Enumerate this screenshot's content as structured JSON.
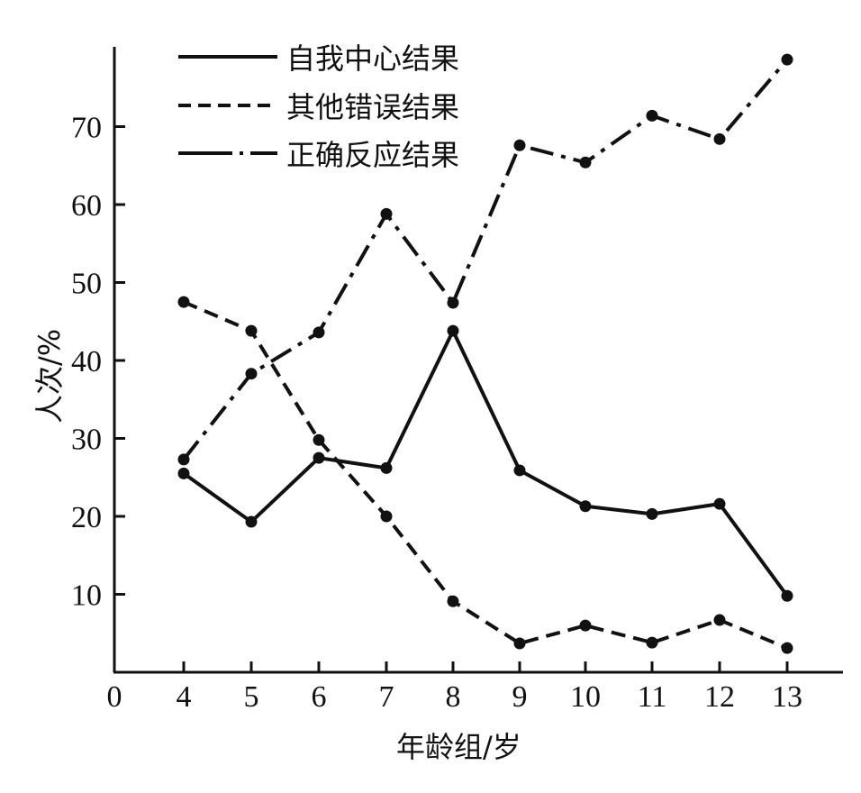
{
  "chart_data": {
    "type": "line",
    "title": "",
    "xlabel": "年龄组/岁",
    "ylabel": "人次/%",
    "x": [
      4,
      5,
      6,
      7,
      8,
      9,
      10,
      11,
      12,
      13
    ],
    "x_tick_labels": [
      "0",
      "4",
      "5",
      "6",
      "7",
      "8",
      "9",
      "10",
      "11",
      "12",
      "13"
    ],
    "y_tick_labels": [
      "10",
      "20",
      "30",
      "40",
      "50",
      "60",
      "70"
    ],
    "y_ticks": [
      10,
      20,
      30,
      40,
      50,
      60,
      70
    ],
    "ylim": [
      0,
      80
    ],
    "grid": false,
    "legend_position": "upper left",
    "series": [
      {
        "name": "自我中心结果",
        "style": "solid",
        "values": [
          25.5,
          19.3,
          27.5,
          26.2,
          43.8,
          25.9,
          21.3,
          20.3,
          21.6,
          9.8
        ]
      },
      {
        "name": "其他错误结果",
        "style": "dashed",
        "values": [
          47.5,
          43.8,
          29.8,
          20.0,
          9.1,
          3.7,
          6.0,
          3.8,
          6.7,
          3.1
        ]
      },
      {
        "name": "正确反应结果",
        "style": "dash-dot",
        "values": [
          27.3,
          38.3,
          43.6,
          58.8,
          47.4,
          67.6,
          65.4,
          71.4,
          68.4,
          78.6
        ]
      }
    ],
    "colors": {
      "line": "#111111",
      "background": "#ffffff"
    }
  }
}
